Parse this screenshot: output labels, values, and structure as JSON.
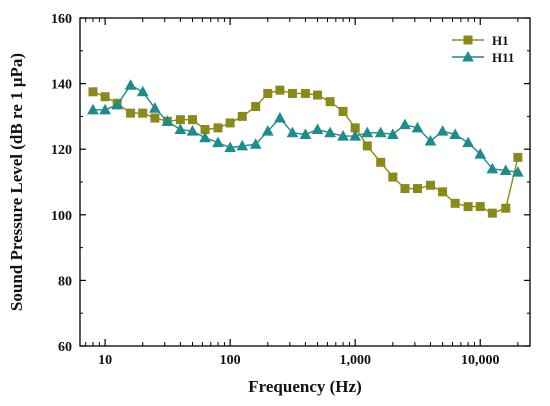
{
  "chart_data": {
    "type": "line",
    "title": "",
    "xlabel": "Frequency (Hz)",
    "ylabel": "Sound Pressure Level (dB re 1 µPa)",
    "xscale": "log",
    "xlim": [
      6.3,
      25000
    ],
    "ylim": [
      60,
      160
    ],
    "xticks": [
      10,
      100,
      1000,
      10000
    ],
    "xtick_labels": [
      "10",
      "100",
      "1,000",
      "10,000"
    ],
    "yticks": [
      60,
      80,
      100,
      120,
      140,
      160
    ],
    "ytick_labels": [
      "60",
      "80",
      "100",
      "120",
      "140",
      "160"
    ],
    "grid": false,
    "legend_position": "top-right",
    "series": [
      {
        "name": "H1",
        "color": "#8a8a1a",
        "marker": "square",
        "x": [
          8,
          10,
          12.5,
          16,
          20,
          25,
          31.5,
          40,
          50,
          63,
          80,
          100,
          125,
          160,
          200,
          250,
          315,
          400,
          500,
          630,
          800,
          1000,
          1250,
          1600,
          2000,
          2500,
          3150,
          4000,
          5000,
          6300,
          8000,
          10000,
          12500,
          16000,
          20000
        ],
        "y": [
          137.5,
          136,
          134,
          131,
          131,
          129.5,
          128.5,
          129,
          129,
          126,
          126.5,
          128,
          130,
          133,
          137,
          138,
          137,
          137,
          136.5,
          134.5,
          131.5,
          126.5,
          121,
          116,
          111.5,
          108,
          108,
          109,
          107,
          103.5,
          102.5,
          102.5,
          100.5,
          102,
          117.5
        ]
      },
      {
        "name": "H11",
        "color": "#1e8c8c",
        "marker": "triangle",
        "x": [
          8,
          10,
          12.5,
          16,
          20,
          25,
          31.5,
          40,
          50,
          63,
          80,
          100,
          125,
          160,
          200,
          250,
          315,
          400,
          500,
          630,
          800,
          1000,
          1250,
          1600,
          2000,
          2500,
          3150,
          4000,
          5000,
          6300,
          8000,
          10000,
          12500,
          16000,
          20000
        ],
        "y": [
          132,
          132,
          133.5,
          139.5,
          137.5,
          132.5,
          128.5,
          126,
          125.5,
          123.5,
          122,
          120.5,
          121,
          121.5,
          125.5,
          129.5,
          125,
          124.5,
          126,
          125,
          124,
          124,
          125,
          125,
          124.5,
          127.5,
          126.5,
          122.5,
          125.5,
          124.5,
          122,
          118.5,
          114,
          113.5,
          113
        ]
      }
    ]
  }
}
